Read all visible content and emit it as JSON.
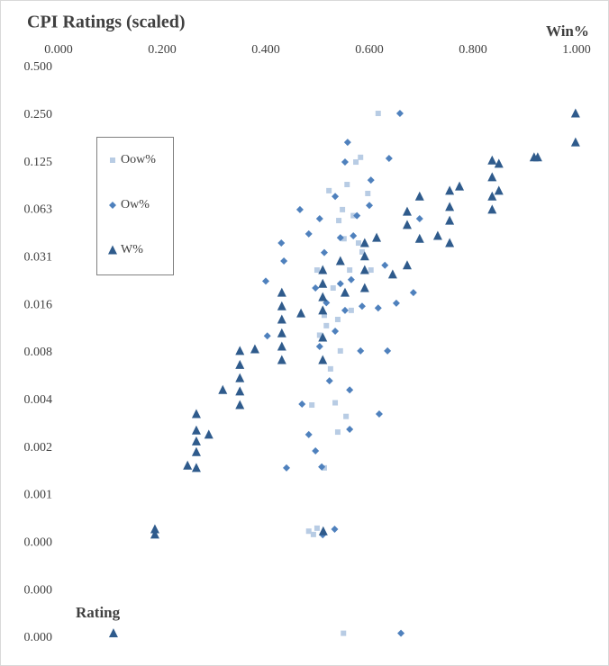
{
  "chart_data": {
    "type": "scatter",
    "title": "CPI Ratings (scaled)",
    "x_label": "Win%",
    "y_label": "Rating",
    "xlim": [
      0,
      1
    ],
    "xticks": [
      {
        "value": 0,
        "label": "0.000"
      },
      {
        "value": 0.2,
        "label": "0.200"
      },
      {
        "value": 0.4,
        "label": "0.400"
      },
      {
        "value": 0.6,
        "label": "0.600"
      },
      {
        "value": 0.8,
        "label": "0.800"
      },
      {
        "value": 1,
        "label": "1.000"
      }
    ],
    "ylim": [
      0.0001220703125,
      0.5
    ],
    "ylog": true,
    "yticks": [
      {
        "value": 0.5,
        "label": "0.500"
      },
      {
        "value": 0.25,
        "label": "0.250"
      },
      {
        "value": 0.125,
        "label": "0.125"
      },
      {
        "value": 0.0625,
        "label": "0.063"
      },
      {
        "value": 0.03125,
        "label": "0.031"
      },
      {
        "value": 0.015625,
        "label": "0.016"
      },
      {
        "value": 0.0078125,
        "label": "0.008"
      },
      {
        "value": 0.00390625,
        "label": "0.004"
      },
      {
        "value": 0.001953125,
        "label": "0.002"
      },
      {
        "value": 0.0009765625,
        "label": "0.001"
      },
      {
        "value": 0.00048828125,
        "label": "0.000"
      },
      {
        "value": 0.000244140625,
        "label": "0.000"
      },
      {
        "value": 0.0001220703125,
        "label": "0.000"
      }
    ],
    "series": [
      {
        "name": "Oow%",
        "color": "#b8cce4",
        "marker": "square",
        "x": [
          0.55,
          0.617,
          0.483,
          0.499,
          0.492,
          0.513,
          0.539,
          0.555,
          0.534,
          0.489,
          0.504,
          0.544,
          0.525,
          0.513,
          0.53,
          0.562,
          0.579,
          0.541,
          0.548,
          0.557,
          0.574,
          0.583,
          0.522,
          0.597,
          0.499,
          0.586,
          0.565,
          0.539,
          0.517,
          0.603,
          0.569,
          0.551
        ],
        "values": [
          0.000131,
          0.256,
          0.00058,
          0.000606,
          0.000553,
          0.00146,
          0.00246,
          0.00309,
          0.00377,
          0.00365,
          0.0101,
          0.00803,
          0.00618,
          0.0135,
          0.0201,
          0.0261,
          0.0387,
          0.0537,
          0.063,
          0.0908,
          0.126,
          0.135,
          0.083,
          0.0797,
          0.0261,
          0.034,
          0.0145,
          0.0127,
          0.0116,
          0.0261,
          0.0577,
          0.0412
        ]
      },
      {
        "name": "Ow%",
        "color": "#4f81bd",
        "marker": "diamond",
        "x": [
          0.661,
          0.44,
          0.533,
          0.51,
          0.508,
          0.483,
          0.47,
          0.496,
          0.562,
          0.619,
          0.523,
          0.562,
          0.583,
          0.635,
          0.403,
          0.4,
          0.435,
          0.43,
          0.483,
          0.466,
          0.504,
          0.534,
          0.558,
          0.553,
          0.603,
          0.638,
          0.659,
          0.6,
          0.569,
          0.544,
          0.553,
          0.586,
          0.617,
          0.652,
          0.685,
          0.496,
          0.517,
          0.504,
          0.534,
          0.565,
          0.576,
          0.544,
          0.513,
          0.63,
          0.697
        ],
        "values": [
          0.000131,
          0.00146,
          0.000597,
          0.00055,
          0.00148,
          0.00237,
          0.0037,
          0.00187,
          0.00256,
          0.0032,
          0.00519,
          0.00455,
          0.00803,
          0.00803,
          0.00999,
          0.0222,
          0.0298,
          0.0387,
          0.0442,
          0.063,
          0.0552,
          0.0764,
          0.168,
          0.126,
          0.0968,
          0.133,
          0.256,
          0.067,
          0.043,
          0.0214,
          0.0145,
          0.0154,
          0.015,
          0.0161,
          0.0188,
          0.0201,
          0.0162,
          0.00856,
          0.0107,
          0.0227,
          0.0577,
          0.0418,
          0.0337,
          0.028,
          0.0552
        ]
      },
      {
        "name": "W%",
        "color": "#2f5b8c",
        "marker": "triangle",
        "x": [
          0.106,
          0.186,
          0.186,
          0.249,
          0.266,
          0.266,
          0.266,
          0.266,
          0.266,
          0.29,
          0.317,
          0.35,
          0.35,
          0.35,
          0.35,
          0.35,
          0.379,
          0.431,
          0.431,
          0.431,
          0.431,
          0.431,
          0.431,
          0.468,
          0.51,
          0.51,
          0.51,
          0.51,
          0.51,
          0.51,
          0.511,
          0.544,
          0.553,
          0.591,
          0.591,
          0.591,
          0.591,
          0.614,
          0.645,
          0.673,
          0.673,
          0.673,
          0.697,
          0.697,
          0.732,
          0.755,
          0.755,
          0.755,
          0.755,
          0.774,
          0.837,
          0.837,
          0.837,
          0.837,
          0.85,
          0.85,
          0.918,
          0.925,
          0.998,
          0.998
        ],
        "values": [
          0.000131,
          0.000597,
          0.000553,
          0.00151,
          0.0032,
          0.00252,
          0.00215,
          0.00184,
          0.00146,
          0.00237,
          0.00455,
          0.00803,
          0.00656,
          0.0054,
          0.00445,
          0.00365,
          0.00824,
          0.0188,
          0.0154,
          0.0127,
          0.0104,
          0.00856,
          0.00703,
          0.0139,
          0.0261,
          0.0214,
          0.0176,
          0.0145,
          0.00977,
          0.00703,
          0.00058,
          0.0298,
          0.0188,
          0.0387,
          0.0319,
          0.0261,
          0.0201,
          0.0418,
          0.0245,
          0.0612,
          0.0504,
          0.028,
          0.0764,
          0.0412,
          0.043,
          0.083,
          0.0655,
          0.0537,
          0.0387,
          0.0884,
          0.129,
          0.101,
          0.0764,
          0.063,
          0.123,
          0.083,
          0.135,
          0.135,
          0.256,
          0.168
        ]
      }
    ]
  }
}
